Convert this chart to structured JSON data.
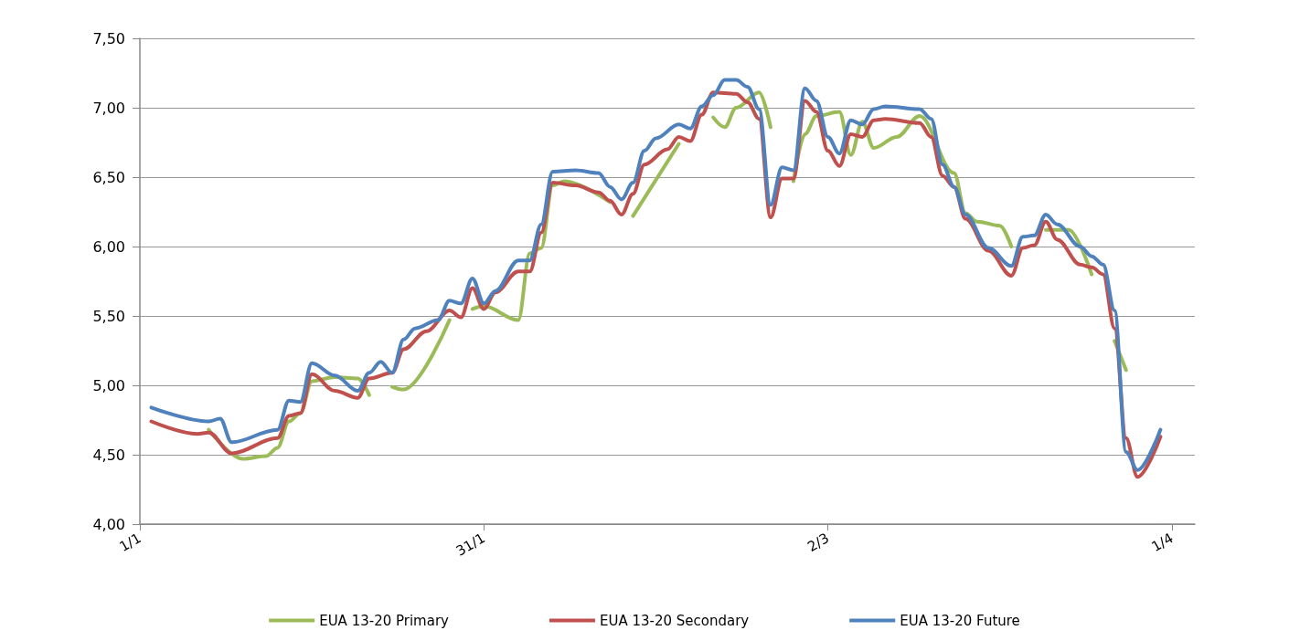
{
  "chart_data": {
    "type": "line",
    "xlim": [
      "--01-01",
      "--04-03"
    ],
    "xticks": [
      {
        "value": "--01-01",
        "label": "1/1"
      },
      {
        "value": "--01-31",
        "label": "31/1"
      },
      {
        "value": "--03-02",
        "label": "2/3"
      },
      {
        "value": "--04-01",
        "label": "1/4"
      }
    ],
    "ylim": [
      4,
      7.5
    ],
    "yticks": [
      {
        "value": 4,
        "label": "4,00"
      },
      {
        "value": 4.5,
        "label": "4,50"
      },
      {
        "value": 5,
        "label": "5,00"
      },
      {
        "value": 5.5,
        "label": "5,50"
      },
      {
        "value": 6,
        "label": "6,00"
      },
      {
        "value": 6.5,
        "label": "6,50"
      },
      {
        "value": 7,
        "label": "7,00"
      },
      {
        "value": 7.5,
        "label": "7,50"
      }
    ],
    "grid": "y",
    "legend": "bottom",
    "marker": "none",
    "line_style": "solid",
    "series": [
      {
        "name": "EUA 13-20 Primary",
        "color": "#9bbb59",
        "x": [
          "--01-07",
          "--01-10",
          "--01-12",
          "--01-13",
          "--01-14",
          "--01-15",
          "--01-16",
          "--01-18",
          "--01-20",
          "--01-21",
          "--01-22",
          "--01-23",
          "--01-24",
          "--01-28",
          "--01-29",
          "--01-30",
          "--01-31",
          "--02-03",
          "--02-04",
          "--02-05",
          "--02-06",
          "--02-07",
          "--02-11",
          "--02-12",
          "--02-13",
          "--02-17",
          "--02-18",
          "--02-20",
          "--02-21",
          "--02-22",
          "--02-24",
          "--02-25",
          "--02-26",
          "--02-27",
          "--02-28",
          "--03-01",
          "--03-03",
          "--03-04",
          "--03-05",
          "--03-06",
          "--03-08",
          "--03-10",
          "--03-13",
          "--03-14",
          "--03-15",
          "--03-17",
          "--03-18",
          "--03-19",
          "--03-21",
          "--03-23",
          "--03-25",
          "--03-26",
          "--03-27",
          "--03-28"
        ],
        "values": [
          4.68,
          4.47,
          4.49,
          4.55,
          4.74,
          4.8,
          5.03,
          5.06,
          5.05,
          4.93,
          null,
          4.99,
          4.97,
          5.47,
          null,
          5.55,
          5.57,
          5.47,
          5.95,
          5.99,
          6.44,
          6.47,
          6.32,
          null,
          6.22,
          6.74,
          null,
          6.93,
          6.86,
          7.0,
          7.11,
          6.86,
          null,
          6.47,
          6.81,
          6.94,
          6.97,
          6.66,
          6.9,
          6.71,
          6.79,
          6.94,
          6.53,
          6.24,
          6.18,
          6.15,
          6.0,
          null,
          6.12,
          6.12,
          5.8,
          null,
          5.32,
          5.11
        ]
      },
      {
        "name": "EUA 13-20 Secondary",
        "color": "#c0504d",
        "x": [
          "--01-02",
          "--01-06",
          "--01-07",
          "--01-09",
          "--01-13",
          "--01-14",
          "--01-15",
          "--01-16",
          "--01-18",
          "--01-20",
          "--01-21",
          "--01-23",
          "--01-24",
          "--01-26",
          "--01-28",
          "--01-29",
          "--01-30",
          "--01-31",
          "--02-01",
          "--02-03",
          "--02-04",
          "--02-05",
          "--02-06",
          "--02-08",
          "--02-10",
          "--02-11",
          "--02-12",
          "--02-13",
          "--02-14",
          "--02-16",
          "--02-17",
          "--02-18",
          "--02-19",
          "--02-20",
          "--02-22",
          "--02-23",
          "--02-24",
          "--02-25",
          "--02-26",
          "--02-27",
          "--02-28",
          "--03-01",
          "--03-02",
          "--03-03",
          "--03-04",
          "--03-05",
          "--03-06",
          "--03-07",
          "--03-10",
          "--03-11",
          "--03-12",
          "--03-13",
          "--03-14",
          "--03-16",
          "--03-18",
          "--03-19",
          "--03-20",
          "--03-21",
          "--03-22",
          "--03-24",
          "--03-25",
          "--03-26",
          "--03-27",
          "--03-28",
          "--03-29",
          "--03-31"
        ],
        "values": [
          4.74,
          4.65,
          4.66,
          4.51,
          4.62,
          4.78,
          4.8,
          5.08,
          4.96,
          4.91,
          5.05,
          5.09,
          5.26,
          5.39,
          5.54,
          5.49,
          5.7,
          5.55,
          5.67,
          5.82,
          5.82,
          6.1,
          6.46,
          6.44,
          6.39,
          6.33,
          6.23,
          6.38,
          6.59,
          6.7,
          6.79,
          6.76,
          6.95,
          7.11,
          7.1,
          7.04,
          6.92,
          6.21,
          6.49,
          6.49,
          7.05,
          6.97,
          6.69,
          6.58,
          6.81,
          6.79,
          6.91,
          6.92,
          6.89,
          6.79,
          6.51,
          6.43,
          6.2,
          5.97,
          5.79,
          5.99,
          6.01,
          6.18,
          6.05,
          5.87,
          5.85,
          5.8,
          5.41,
          4.62,
          4.34,
          4.63
        ]
      },
      {
        "name": "EUA 13-20 Future",
        "color": "#4f81bd",
        "x": [
          "--01-02",
          "--01-07",
          "--01-08",
          "--01-09",
          "--01-13",
          "--01-14",
          "--01-15",
          "--01-16",
          "--01-18",
          "--01-20",
          "--01-21",
          "--01-22",
          "--01-23",
          "--01-24",
          "--01-25",
          "--01-27",
          "--01-28",
          "--01-29",
          "--01-30",
          "--01-31",
          "--02-01",
          "--02-03",
          "--02-04",
          "--02-05",
          "--02-06",
          "--02-08",
          "--02-10",
          "--02-11",
          "--02-12",
          "--02-13",
          "--02-14",
          "--02-15",
          "--02-17",
          "--02-18",
          "--02-19",
          "--02-20",
          "--02-21",
          "--02-22",
          "--02-23",
          "--02-24",
          "--02-25",
          "--02-26",
          "--02-27",
          "--02-28",
          "--03-01",
          "--03-02",
          "--03-03",
          "--03-04",
          "--03-05",
          "--03-06",
          "--03-07",
          "--03-10",
          "--03-11",
          "--03-12",
          "--03-13",
          "--03-14",
          "--03-16",
          "--03-18",
          "--03-19",
          "--03-20",
          "--03-21",
          "--03-22",
          "--03-24",
          "--03-25",
          "--03-26",
          "--03-27",
          "--03-28",
          "--03-29",
          "--03-31"
        ],
        "values": [
          4.84,
          4.74,
          4.76,
          4.59,
          4.68,
          4.89,
          4.88,
          5.16,
          5.07,
          4.96,
          5.09,
          5.17,
          5.09,
          5.33,
          5.41,
          5.47,
          5.61,
          5.59,
          5.77,
          5.59,
          5.68,
          5.9,
          5.9,
          6.16,
          6.54,
          6.55,
          6.53,
          6.43,
          6.34,
          6.46,
          6.69,
          6.78,
          6.88,
          6.85,
          7.01,
          7.09,
          7.2,
          7.2,
          7.15,
          6.99,
          6.3,
          6.57,
          6.55,
          7.14,
          7.05,
          6.79,
          6.67,
          6.91,
          6.88,
          6.99,
          7.01,
          6.99,
          6.92,
          6.59,
          6.43,
          6.23,
          5.99,
          5.86,
          6.07,
          6.08,
          6.23,
          6.16,
          6.0,
          5.93,
          5.87,
          5.54,
          4.52,
          4.39,
          4.68
        ]
      }
    ]
  }
}
